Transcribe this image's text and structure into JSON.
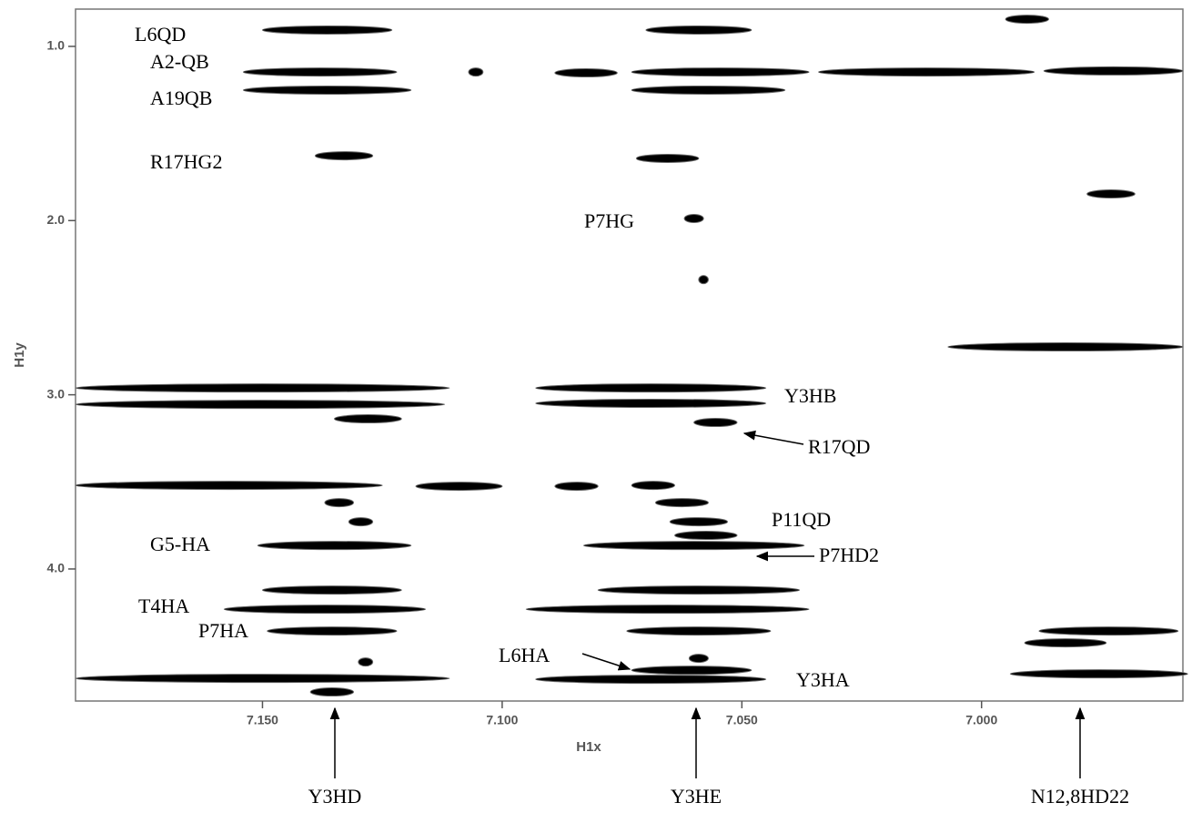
{
  "chart_data": {
    "type": "spectrum2d",
    "x_label": "H1x",
    "y_label": "H1y",
    "xlim": [
      7.189,
      6.958
    ],
    "ylim": [
      0.786,
      4.758
    ],
    "xticks": [
      {
        "value": 7.15,
        "label": "7.150"
      },
      {
        "value": 7.1,
        "label": "7.100"
      },
      {
        "value": 7.05,
        "label": "7.050"
      },
      {
        "value": 7.0,
        "label": "7.000"
      }
    ],
    "yticks": [
      {
        "value": 1,
        "label": "1.0"
      },
      {
        "value": 2,
        "label": "2.0"
      },
      {
        "value": 3,
        "label": "3.0"
      },
      {
        "value": 4,
        "label": "4.0"
      }
    ],
    "color": "#000000",
    "peaks": {
      "x0": [
        7.15,
        7.07,
        7.154,
        7.154,
        7.107,
        7.089,
        7.073,
        7.034,
        6.987,
        7.073,
        7.139,
        7.072,
        7.062,
        6.978,
        6.995,
        7.059,
        7.007,
        7.189,
        7.189,
        7.093,
        7.093,
        7.135,
        7.06,
        7.189,
        7.118,
        7.089,
        7.073,
        7.137,
        7.132,
        7.068,
        7.065,
        7.064,
        7.151,
        7.083,
        7.08,
        7.15,
        7.158,
        7.095,
        7.149,
        7.074,
        6.988,
        6.991,
        7.13,
        7.061,
        7.073,
        7.189,
        7.093,
        6.994,
        7.14
      ],
      "x1": [
        7.123,
        7.048,
        7.122,
        7.119,
        7.104,
        7.076,
        7.036,
        6.989,
        6.958,
        7.041,
        7.127,
        7.059,
        7.058,
        6.968,
        6.986,
        7.057,
        6.958,
        7.111,
        7.112,
        7.045,
        7.045,
        7.121,
        7.051,
        7.125,
        7.1,
        7.08,
        7.064,
        7.131,
        7.127,
        7.057,
        7.053,
        7.051,
        7.119,
        7.037,
        7.038,
        7.121,
        7.116,
        7.036,
        7.122,
        7.044,
        6.959,
        6.974,
        7.127,
        7.057,
        7.048,
        7.111,
        7.045,
        6.957,
        7.131
      ],
      "y": [
        0.906,
        0.906,
        1.147,
        1.251,
        1.147,
        1.152,
        1.147,
        1.147,
        1.141,
        1.251,
        1.628,
        1.643,
        1.988,
        1.847,
        0.844,
        2.339,
        2.725,
        2.961,
        3.055,
        2.961,
        3.049,
        3.138,
        3.159,
        3.52,
        3.525,
        3.525,
        3.52,
        3.619,
        3.729,
        3.619,
        3.729,
        3.807,
        3.865,
        3.865,
        4.121,
        4.121,
        4.231,
        4.231,
        4.356,
        4.356,
        4.356,
        4.424,
        4.534,
        4.513,
        4.581,
        4.628,
        4.633,
        4.602,
        4.706
      ]
    },
    "annotations": [
      "L6QD",
      "A2-QB",
      "A19QB",
      "R17HG2",
      "P7HG",
      "Y3HB",
      "R17QD",
      "P11QD",
      "P7HD2",
      "G5-HA",
      "T4HA",
      "P7HA",
      "L6HA",
      "Y3HA",
      "Y3HD",
      "Y3HE",
      "N12,8HD22"
    ]
  }
}
